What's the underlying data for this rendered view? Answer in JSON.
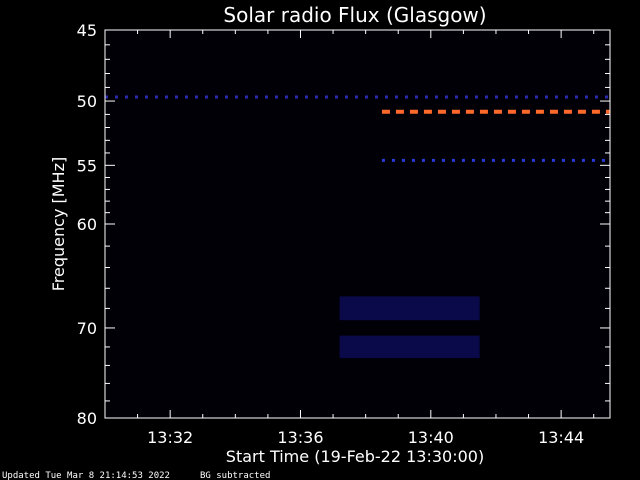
{
  "chart_data": {
    "type": "heatmap",
    "title": "Solar radio Flux (Glasgow)",
    "xlabel": "Start Time (19-Feb-22 13:30:00)",
    "ylabel": "Frequency [MHz]",
    "x_units": "minutes after 13:30:00",
    "xlim": [
      0,
      15.5
    ],
    "ylim": [
      80,
      45
    ],
    "y_scale": "log",
    "x_ticks": [
      {
        "value": 2,
        "label": "13:32"
      },
      {
        "value": 6,
        "label": "13:36"
      },
      {
        "value": 10,
        "label": "13:40"
      },
      {
        "value": 14,
        "label": "13:44"
      }
    ],
    "y_ticks": [
      {
        "value": 45,
        "label": "45"
      },
      {
        "value": 50,
        "label": "50"
      },
      {
        "value": 55,
        "label": "55"
      },
      {
        "value": 60,
        "label": "60"
      },
      {
        "value": 70,
        "label": "70"
      },
      {
        "value": 80,
        "label": "80"
      }
    ],
    "features": [
      {
        "kind": "dashed-line",
        "freq": 49.7,
        "t_start": 0,
        "t_end": 15.5,
        "color": "#2a2ab0"
      },
      {
        "kind": "dashed-line",
        "freq": 50.8,
        "t_start": 8.5,
        "t_end": 15.5,
        "color": "#ff6a2a"
      },
      {
        "kind": "dashed-line",
        "freq": 54.6,
        "t_start": 8.5,
        "t_end": 15.5,
        "color": "#2a3ad8"
      },
      {
        "kind": "band",
        "f_low": 66.8,
        "f_high": 69.2,
        "t_start": 7.2,
        "t_end": 11.5,
        "color": "#0a0a4a"
      },
      {
        "kind": "band",
        "f_low": 70.8,
        "f_high": 73.2,
        "t_start": 7.2,
        "t_end": 11.5,
        "color": "#0a0a4a"
      }
    ]
  },
  "footer": {
    "updated": "Updated Tue Mar  8 21:14:53 2022",
    "note": "BG subtracted"
  }
}
